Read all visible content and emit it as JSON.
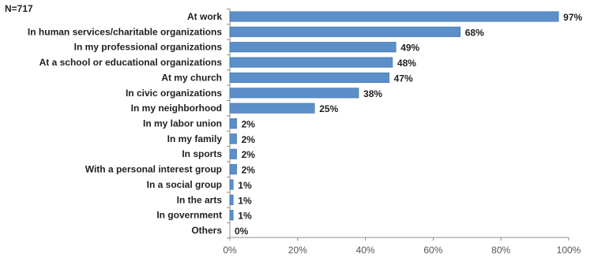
{
  "note": "N=717",
  "chart_data": {
    "type": "bar",
    "orientation": "horizontal",
    "categories": [
      "At work",
      "In human services/charitable organizations",
      "In my professional organizations",
      "At a school or educational organizations",
      "At my church",
      "In civic organizations",
      "In my neighborhood",
      "In my labor union",
      "In my family",
      "In sports",
      "With a personal interest group",
      "In a social group",
      "In the arts",
      "In government",
      "Others"
    ],
    "values": [
      97,
      68,
      49,
      48,
      47,
      38,
      25,
      2,
      2,
      2,
      2,
      1,
      1,
      1,
      0
    ],
    "data_labels": [
      "97%",
      "68%",
      "49%",
      "48%",
      "47%",
      "38%",
      "25%",
      "2%",
      "2%",
      "2%",
      "2%",
      "1%",
      "1%",
      "1%",
      "0%"
    ],
    "xlim": [
      0,
      100
    ],
    "x_ticks": [
      0,
      20,
      40,
      60,
      80,
      100
    ],
    "x_tick_labels": [
      "0%",
      "20%",
      "40%",
      "60%",
      "80%",
      "100%"
    ],
    "grid": false,
    "legend": "none",
    "bar_color": "#5b8fc9",
    "bar_edge_color": "#3e6fa3"
  }
}
